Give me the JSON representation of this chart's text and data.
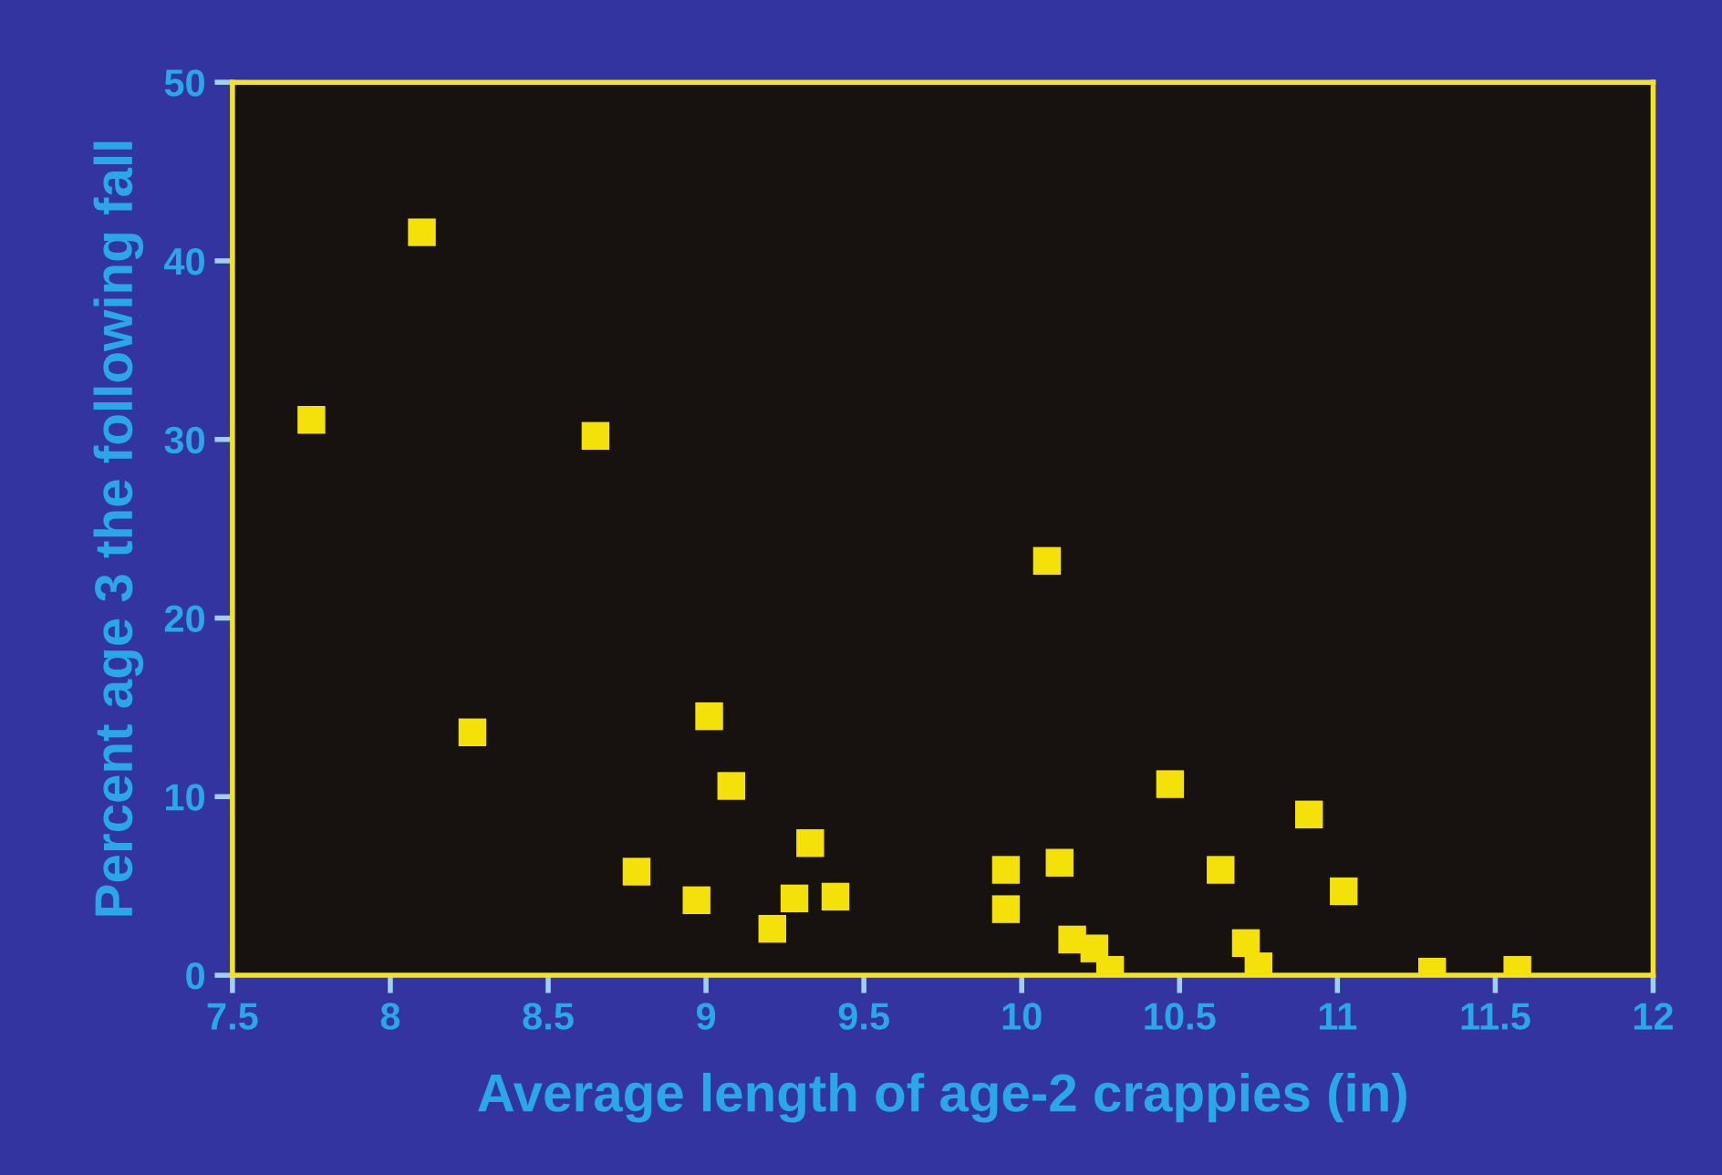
{
  "chart_data": {
    "type": "scatter",
    "xlabel": "Average length of age-2 crappies (in)",
    "ylabel": "Percent age 3 the following fall",
    "xlim": [
      7.5,
      12
    ],
    "xticks": [
      7.5,
      8,
      8.5,
      9,
      9.5,
      10,
      10.5,
      11,
      11.5,
      12
    ],
    "ylim": [
      0,
      50
    ],
    "yticks": [
      0,
      10,
      20,
      30,
      40,
      50
    ],
    "grid": false,
    "marker": "square",
    "series": [
      {
        "color": "#f5e10a",
        "x": [
          7.75,
          8.1,
          8.26,
          8.65,
          8.78,
          8.97,
          9.01,
          9.08,
          9.21,
          9.28,
          9.33,
          9.41,
          9.95,
          9.95,
          10.08,
          10.12,
          10.16,
          10.23,
          10.28,
          10.47,
          10.63,
          10.71,
          10.75,
          10.91,
          11.02,
          11.3,
          11.57
        ],
        "values": [
          31.1,
          41.6,
          13.6,
          30.2,
          5.8,
          4.2,
          14.5,
          10.6,
          2.6,
          4.3,
          7.4,
          4.4,
          5.9,
          3.7,
          23.2,
          6.3,
          2.0,
          1.5,
          0.3,
          10.7,
          5.9,
          1.8,
          0.5,
          9.0,
          4.7,
          0.2,
          0.3
        ]
      }
    ]
  }
}
